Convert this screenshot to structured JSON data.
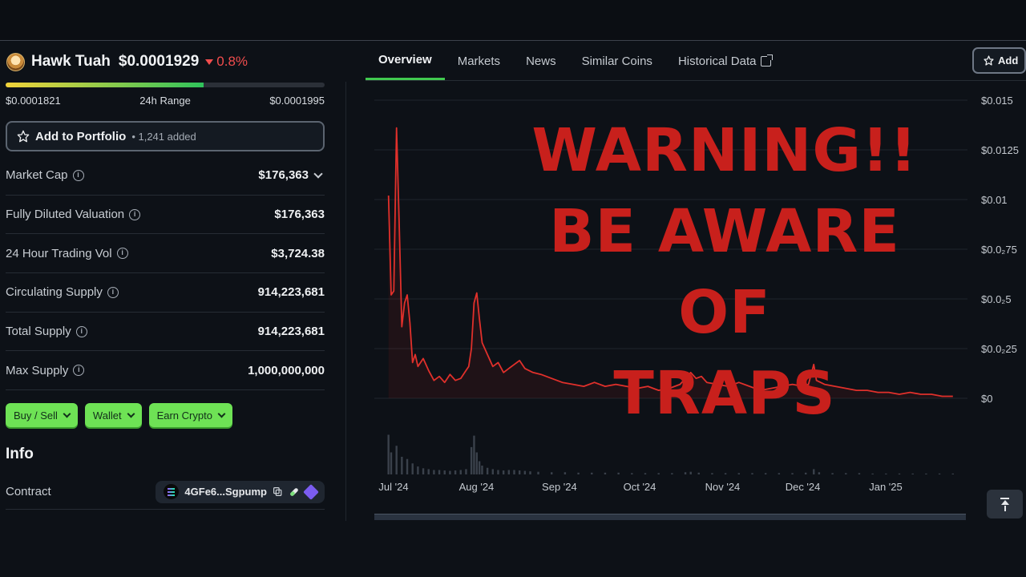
{
  "coin": {
    "name": "Hawk Tuah",
    "price": "$0.0001929",
    "change": "0.8%",
    "range_low": "$0.0001821",
    "range_label": "24h Range",
    "range_high": "$0.0001995",
    "range_position": 0.62
  },
  "portfolio": {
    "label": "Add to Portfolio",
    "count": "• 1,241 added"
  },
  "stats": [
    {
      "label": "Market Cap",
      "value": "$176,363"
    },
    {
      "label": "Fully Diluted Valuation",
      "value": "$176,363"
    },
    {
      "label": "24 Hour Trading Vol",
      "value": "$3,724.38"
    },
    {
      "label": "Circulating Supply",
      "value": "914,223,681"
    },
    {
      "label": "Total Supply",
      "value": "914,223,681"
    },
    {
      "label": "Max Supply",
      "value": "1,000,000,000"
    }
  ],
  "actions": [
    "Buy / Sell",
    "Wallet",
    "Earn Crypto"
  ],
  "info": {
    "title": "Info",
    "contract_label": "Contract",
    "contract_address": "4GFe6...Sgpump"
  },
  "tabs": [
    "Overview",
    "Markets",
    "News",
    "Similar Coins",
    "Historical Data"
  ],
  "add_button": "Add",
  "overlay": {
    "line1": "WARNING!!",
    "line2": "BE AWARE OF",
    "line3": "TRAPS"
  },
  "colors": {
    "accent_green": "#41c94f",
    "down_red": "#f04d4d",
    "line_red": "#e0302b",
    "warning_red": "#c8201c"
  },
  "icons": [
    "star-icon",
    "info-icon",
    "chevron-down-icon",
    "external-link-icon",
    "solana-icon",
    "copy-icon",
    "pill-icon",
    "metamask-icon",
    "scroll-to-top-icon"
  ],
  "chart_data": {
    "type": "line",
    "y_ticks": [
      "$0.015",
      "$0.0125",
      "$0.01",
      "$0.0₂75",
      "$0.0₂5",
      "$0.0₂25",
      "$0"
    ],
    "y_values_of_ticks": [
      0.015,
      0.0125,
      0.01,
      0.0075,
      0.005,
      0.0025,
      0
    ],
    "ylim": [
      0,
      0.015
    ],
    "x_ticks": [
      "Jul '24",
      "Aug '24",
      "Sep '24",
      "Oct '24",
      "Nov '24",
      "Dec '24",
      "Jan '25"
    ],
    "x_tick_days": [
      0,
      31,
      62,
      92,
      123,
      153,
      184
    ],
    "grid": true,
    "series": [
      {
        "points": [
          [
            -1,
            0.0102
          ],
          [
            0,
            0.0052
          ],
          [
            1,
            0.0054
          ],
          [
            2,
            0.0136
          ],
          [
            3,
            0.0088
          ],
          [
            4,
            0.0036
          ],
          [
            5,
            0.0048
          ],
          [
            6,
            0.0052
          ],
          [
            7,
            0.0038
          ],
          [
            8,
            0.0018
          ],
          [
            9,
            0.0022
          ],
          [
            10,
            0.0016
          ],
          [
            12,
            0.002
          ],
          [
            14,
            0.0014
          ],
          [
            16,
            0.0009
          ],
          [
            18,
            0.0011
          ],
          [
            20,
            0.0008
          ],
          [
            22,
            0.0012
          ],
          [
            24,
            0.0009
          ],
          [
            26,
            0.001
          ],
          [
            28,
            0.0014
          ],
          [
            29,
            0.0016
          ],
          [
            30,
            0.0025
          ],
          [
            31,
            0.0048
          ],
          [
            32,
            0.0053
          ],
          [
            33,
            0.004
          ],
          [
            34,
            0.0028
          ],
          [
            36,
            0.0022
          ],
          [
            38,
            0.0016
          ],
          [
            40,
            0.0018
          ],
          [
            42,
            0.0013
          ],
          [
            44,
            0.0015
          ],
          [
            46,
            0.0017
          ],
          [
            48,
            0.0019
          ],
          [
            50,
            0.0015
          ],
          [
            53,
            0.0013
          ],
          [
            56,
            0.0012
          ],
          [
            60,
            0.001
          ],
          [
            64,
            0.0008
          ],
          [
            68,
            0.0007
          ],
          [
            72,
            0.0006
          ],
          [
            76,
            0.0008
          ],
          [
            80,
            0.0006
          ],
          [
            84,
            0.0007
          ],
          [
            88,
            0.0006
          ],
          [
            92,
            0.0005
          ],
          [
            96,
            0.0006
          ],
          [
            100,
            0.0004
          ],
          [
            104,
            0.0005
          ],
          [
            108,
            0.0007
          ],
          [
            110,
            0.001
          ],
          [
            112,
            0.0013
          ],
          [
            114,
            0.001
          ],
          [
            116,
            0.0011
          ],
          [
            118,
            0.0008
          ],
          [
            122,
            0.0007
          ],
          [
            126,
            0.0006
          ],
          [
            130,
            0.0008
          ],
          [
            134,
            0.0006
          ],
          [
            138,
            0.0004
          ],
          [
            142,
            0.0005
          ],
          [
            146,
            0.0006
          ],
          [
            150,
            0.0007
          ],
          [
            154,
            0.0006
          ],
          [
            156,
            0.0007
          ],
          [
            158,
            0.0017
          ],
          [
            159,
            0.0009
          ],
          [
            162,
            0.0007
          ],
          [
            166,
            0.0006
          ],
          [
            170,
            0.0005
          ],
          [
            174,
            0.0004
          ],
          [
            178,
            0.0004
          ],
          [
            182,
            0.0003
          ],
          [
            186,
            0.0003
          ],
          [
            190,
            0.0002
          ],
          [
            194,
            0.0003
          ],
          [
            198,
            0.0002
          ],
          [
            202,
            0.0002
          ],
          [
            206,
            0.0001
          ],
          [
            210,
            0.0001
          ]
        ]
      }
    ],
    "volume": [
      [
        -1,
        0.9
      ],
      [
        0,
        0.5
      ],
      [
        2,
        0.65
      ],
      [
        4,
        0.4
      ],
      [
        6,
        0.35
      ],
      [
        8,
        0.25
      ],
      [
        10,
        0.18
      ],
      [
        12,
        0.14
      ],
      [
        14,
        0.12
      ],
      [
        16,
        0.1
      ],
      [
        18,
        0.1
      ],
      [
        20,
        0.09
      ],
      [
        22,
        0.08
      ],
      [
        24,
        0.09
      ],
      [
        26,
        0.1
      ],
      [
        28,
        0.12
      ],
      [
        30,
        0.62
      ],
      [
        31,
        0.88
      ],
      [
        32,
        0.5
      ],
      [
        33,
        0.3
      ],
      [
        34,
        0.2
      ],
      [
        36,
        0.15
      ],
      [
        38,
        0.12
      ],
      [
        40,
        0.1
      ],
      [
        42,
        0.09
      ],
      [
        44,
        0.1
      ],
      [
        46,
        0.1
      ],
      [
        48,
        0.09
      ],
      [
        50,
        0.08
      ],
      [
        52,
        0.07
      ],
      [
        55,
        0.06
      ],
      [
        60,
        0.05
      ],
      [
        65,
        0.05
      ],
      [
        70,
        0.04
      ],
      [
        75,
        0.04
      ],
      [
        80,
        0.04
      ],
      [
        85,
        0.04
      ],
      [
        90,
        0.03
      ],
      [
        95,
        0.03
      ],
      [
        100,
        0.03
      ],
      [
        105,
        0.03
      ],
      [
        110,
        0.05
      ],
      [
        112,
        0.06
      ],
      [
        115,
        0.04
      ],
      [
        120,
        0.03
      ],
      [
        125,
        0.03
      ],
      [
        130,
        0.03
      ],
      [
        135,
        0.03
      ],
      [
        140,
        0.03
      ],
      [
        145,
        0.03
      ],
      [
        150,
        0.03
      ],
      [
        155,
        0.04
      ],
      [
        158,
        0.12
      ],
      [
        160,
        0.05
      ],
      [
        165,
        0.03
      ],
      [
        170,
        0.03
      ],
      [
        175,
        0.03
      ],
      [
        180,
        0.02
      ],
      [
        185,
        0.02
      ],
      [
        190,
        0.02
      ],
      [
        195,
        0.02
      ],
      [
        200,
        0.02
      ],
      [
        205,
        0.02
      ],
      [
        210,
        0.02
      ]
    ]
  }
}
